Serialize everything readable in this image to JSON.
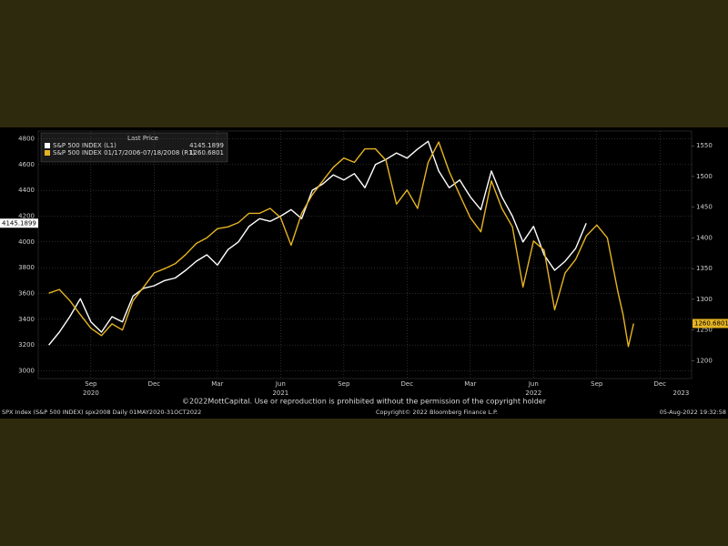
{
  "chart_data": {
    "type": "line",
    "legend_title": "Last Price",
    "legend": "upper left",
    "grid": true,
    "notice": "©2022MottCapital. Use or reproduction is prohibited without the permission of the copyright holder",
    "footer_left": "SPX Index (S&P 500 INDEX) spx2008  Daily 01MAY2020-31OCT2022",
    "footer_center": "Copyright© 2022 Bloomberg Finance L.P.",
    "footer_right": "05-Aug-2022 19:32:58",
    "xlim": [
      1.5,
      32.5
    ],
    "xticks": [
      {
        "value": 4,
        "label": "Sep"
      },
      {
        "value": 7,
        "label": "Dec"
      },
      {
        "value": 10,
        "label": "Mar"
      },
      {
        "value": 13,
        "label": "Jun"
      },
      {
        "value": 16,
        "label": "Sep"
      },
      {
        "value": 19,
        "label": "Dec"
      },
      {
        "value": 22,
        "label": "Mar"
      },
      {
        "value": 25,
        "label": "Jun"
      },
      {
        "value": 28,
        "label": "Sep"
      },
      {
        "value": 31,
        "label": "Dec"
      }
    ],
    "xyears": [
      {
        "value": 4,
        "label": "2020"
      },
      {
        "value": 13,
        "label": "2021"
      },
      {
        "value": 25,
        "label": "2022"
      },
      {
        "value": 32,
        "label": "2023"
      }
    ],
    "ylim": [
      2940,
      4860
    ],
    "yticks": [
      3000,
      3200,
      3400,
      3600,
      3800,
      4000,
      4200,
      4400,
      4600,
      4800
    ],
    "y2lim": [
      1171,
      1574
    ],
    "y2ticks": [
      1200,
      1250,
      1300,
      1350,
      1400,
      1450,
      1500,
      1550
    ],
    "series": [
      {
        "name": "S&P 500 INDEX  (L1)",
        "color": "#ffffff",
        "axis": "y",
        "x": [
          2,
          2.5,
          3,
          3.5,
          4,
          4.5,
          5,
          5.5,
          6,
          6.5,
          7,
          7.5,
          8,
          8.5,
          9,
          9.5,
          10,
          10.5,
          11,
          11.5,
          12,
          12.5,
          13,
          13.5,
          14,
          14.5,
          15,
          15.5,
          16,
          16.5,
          17,
          17.5,
          18,
          18.5,
          19,
          19.5,
          20,
          20.5,
          21,
          21.5,
          22,
          22.5,
          23,
          23.5,
          24,
          24.5,
          25,
          25.5,
          26,
          26.5,
          27,
          27.5
        ],
        "values": [
          3200,
          3300,
          3420,
          3560,
          3380,
          3300,
          3420,
          3380,
          3580,
          3640,
          3660,
          3700,
          3720,
          3780,
          3850,
          3900,
          3820,
          3940,
          4000,
          4120,
          4180,
          4160,
          4200,
          4250,
          4180,
          4400,
          4450,
          4520,
          4480,
          4530,
          4420,
          4600,
          4640,
          4690,
          4650,
          4720,
          4780,
          4550,
          4420,
          4480,
          4350,
          4250,
          4550,
          4350,
          4200,
          4000,
          4120,
          3900,
          3780,
          3850,
          3950,
          4145.1899
        ]
      },
      {
        "name": "S&P 500 INDEX 01/17/2006-07/18/2008  (R1)",
        "color": "#e6b422",
        "axis": "y2",
        "x": [
          2,
          2.5,
          3,
          3.5,
          4,
          4.5,
          5,
          5.5,
          6,
          6.5,
          7,
          7.5,
          8,
          8.5,
          9,
          9.5,
          10,
          10.5,
          11,
          11.5,
          12,
          12.5,
          13,
          13.5,
          14,
          14.5,
          15,
          15.5,
          16,
          16.5,
          17,
          17.5,
          18,
          18.5,
          19,
          19.5,
          20,
          20.5,
          21,
          21.5,
          22,
          22.5,
          23,
          23.5,
          24,
          24.5,
          25,
          25.5,
          26,
          26.5,
          27,
          27.5,
          28,
          28.5,
          29,
          29.25,
          29.5,
          29.75
        ],
        "values": [
          1310,
          1316,
          1298,
          1275,
          1253,
          1241,
          1260,
          1250,
          1298,
          1320,
          1343,
          1350,
          1358,
          1373,
          1391,
          1400,
          1415,
          1418,
          1425,
          1440,
          1440,
          1448,
          1433,
          1388,
          1440,
          1470,
          1493,
          1515,
          1530,
          1523,
          1545,
          1545,
          1526,
          1455,
          1478,
          1448,
          1523,
          1556,
          1508,
          1470,
          1433,
          1410,
          1493,
          1448,
          1418,
          1320,
          1395,
          1380,
          1283,
          1343,
          1365,
          1403,
          1421,
          1400,
          1313,
          1275,
          1223,
          1260.6801
        ]
      }
    ]
  }
}
